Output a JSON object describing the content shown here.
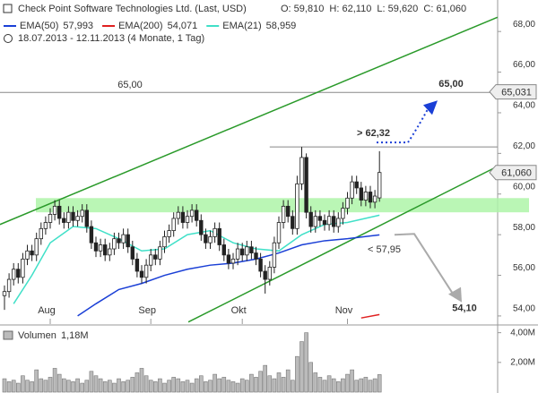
{
  "chart_data": {
    "type": "candlestick",
    "title": "Check Point Software Technologies Ltd. (Last, USD)",
    "quote": "O: 59,810  H: 62,110  L: 59,620  C: 61,060",
    "period": "18.07.2013 - 12.11.2013 (4 Monate, 1 Tag)",
    "ylim": [
      53.6,
      69.55
    ],
    "yticks": [
      {
        "value": 54,
        "label": "54,00"
      },
      {
        "value": 56,
        "label": "56,00"
      },
      {
        "value": 58,
        "label": "58,00"
      },
      {
        "value": 60,
        "label": "60,00"
      },
      {
        "value": 62,
        "label": "62,00"
      },
      {
        "value": 64,
        "label": "64,00"
      },
      {
        "value": 66,
        "label": "66,00"
      },
      {
        "value": 68,
        "label": "68,00"
      }
    ],
    "xticks": [
      {
        "value": 10,
        "label": "Aug"
      },
      {
        "value": 32,
        "label": "Sep"
      },
      {
        "value": 52,
        "label": "Okt"
      },
      {
        "value": 75,
        "label": "Nov"
      }
    ],
    "open": [
      55.0,
      55.2,
      55.8,
      56.3,
      55.9,
      56.8,
      57.2,
      57.0,
      57.8,
      58.3,
      58.6,
      59.0,
      59.4,
      58.8,
      58.6,
      59.1,
      58.7,
      58.9,
      59.2,
      58.4,
      57.6,
      57.2,
      57.5,
      57.0,
      57.3,
      57.8,
      57.6,
      58.0,
      57.4,
      56.8,
      56.2,
      55.9,
      56.5,
      57.0,
      56.8,
      57.4,
      57.9,
      58.2,
      58.8,
      59.1,
      58.6,
      58.9,
      59.2,
      58.7,
      58.0,
      57.6,
      57.9,
      58.3,
      57.5,
      57.0,
      56.6,
      56.8,
      57.3,
      57.0,
      57.4,
      57.1,
      56.8,
      56.2,
      55.8,
      56.4,
      57.6,
      58.6,
      59.4,
      58.9,
      58.3,
      60.5,
      61.8,
      59.1,
      58.4,
      58.9,
      58.7,
      58.5,
      58.9,
      58.4,
      58.8,
      59.3,
      59.8,
      60.6,
      60.3,
      59.7,
      60.1,
      59.6,
      59.81
    ],
    "high": [
      55.5,
      56.1,
      56.6,
      56.6,
      57.1,
      57.5,
      57.5,
      58.1,
      58.6,
      58.9,
      59.3,
      59.7,
      59.7,
      59.1,
      59.4,
      59.4,
      59.2,
      59.5,
      59.5,
      58.7,
      57.9,
      57.8,
      57.8,
      57.6,
      58.1,
      58.1,
      58.3,
      58.3,
      57.7,
      57.1,
      56.5,
      56.8,
      57.3,
      57.3,
      57.7,
      58.2,
      58.5,
      59.1,
      59.4,
      59.4,
      59.2,
      59.5,
      59.5,
      59.0,
      58.3,
      58.2,
      58.6,
      58.6,
      57.8,
      57.3,
      57.1,
      57.6,
      57.6,
      57.7,
      57.7,
      57.4,
      57.1,
      56.5,
      56.7,
      57.9,
      58.9,
      59.7,
      59.7,
      59.2,
      60.9,
      62.32,
      62.0,
      59.4,
      59.2,
      59.2,
      59.0,
      59.2,
      59.2,
      59.1,
      59.6,
      60.1,
      60.9,
      60.9,
      60.6,
      60.4,
      60.4,
      60.2,
      62.11
    ],
    "low": [
      54.3,
      54.9,
      55.5,
      55.6,
      55.6,
      56.5,
      56.7,
      56.7,
      57.5,
      58.0,
      58.3,
      58.7,
      58.5,
      58.3,
      58.3,
      58.4,
      58.4,
      58.6,
      58.1,
      57.3,
      56.9,
      56.9,
      56.7,
      56.7,
      57.0,
      57.3,
      57.3,
      57.1,
      56.5,
      55.9,
      55.6,
      55.6,
      56.2,
      56.5,
      56.5,
      57.1,
      57.6,
      57.9,
      58.5,
      58.3,
      58.3,
      58.6,
      58.4,
      57.7,
      57.3,
      57.3,
      57.6,
      57.2,
      56.7,
      56.3,
      56.3,
      56.5,
      56.7,
      56.7,
      56.8,
      56.5,
      55.9,
      55.1,
      55.5,
      56.1,
      57.3,
      58.3,
      58.6,
      58.0,
      58.0,
      60.2,
      58.8,
      58.1,
      58.1,
      58.4,
      58.2,
      58.2,
      58.1,
      58.1,
      58.5,
      59.0,
      59.5,
      60.0,
      59.4,
      59.4,
      59.3,
      59.3,
      59.62
    ],
    "close": [
      55.2,
      55.8,
      56.3,
      55.9,
      56.8,
      57.2,
      57.0,
      57.8,
      58.3,
      58.6,
      59.0,
      59.4,
      58.8,
      58.6,
      59.1,
      58.7,
      58.9,
      59.2,
      58.4,
      57.6,
      57.2,
      57.5,
      57.0,
      57.3,
      57.8,
      57.6,
      58.0,
      57.4,
      56.8,
      56.2,
      55.9,
      56.5,
      57.0,
      56.8,
      57.4,
      57.9,
      58.2,
      58.8,
      59.1,
      58.6,
      58.9,
      59.2,
      58.7,
      58.0,
      57.6,
      57.9,
      58.3,
      57.5,
      57.0,
      56.6,
      56.8,
      57.3,
      57.0,
      57.4,
      57.1,
      56.8,
      56.2,
      55.8,
      56.4,
      57.6,
      58.6,
      59.4,
      58.9,
      58.3,
      60.5,
      61.8,
      59.1,
      58.4,
      58.9,
      58.7,
      58.5,
      58.9,
      58.4,
      58.8,
      59.3,
      59.8,
      60.6,
      60.3,
      59.7,
      60.1,
      59.6,
      59.9,
      61.06
    ],
    "series": [
      {
        "name": "EMA(50)",
        "value_label": "57,993",
        "color": "#1a3fd6",
        "x": [
          16,
          20,
          25,
          30,
          35,
          40,
          45,
          50,
          55,
          60,
          65,
          70,
          75,
          82
        ],
        "values": [
          54.0,
          54.6,
          55.3,
          55.6,
          56.0,
          56.3,
          56.5,
          56.6,
          56.8,
          57.1,
          57.5,
          57.7,
          57.8,
          57.99
        ]
      },
      {
        "name": "EMA(200)",
        "value_label": "54,071",
        "color": "#e02020",
        "x": [
          78,
          82
        ],
        "values": [
          53.9,
          54.07
        ]
      },
      {
        "name": "EMA(21)",
        "value_label": "58,959",
        "color": "#40e0c8",
        "x": [
          2,
          6,
          10,
          15,
          20,
          25,
          30,
          35,
          40,
          45,
          50,
          55,
          60,
          65,
          70,
          75,
          82
        ],
        "values": [
          54.6,
          56.0,
          57.6,
          58.4,
          58.3,
          57.8,
          57.2,
          57.3,
          58.0,
          58.2,
          57.6,
          57.3,
          57.2,
          58.0,
          58.5,
          58.6,
          58.96
        ]
      }
    ],
    "zone": [
      59.1,
      59.8
    ],
    "trendlines": [
      {
        "x": [
          -1,
          107.8
        ],
        "values": [
          58.5,
          68.7
        ]
      },
      {
        "x": [
          40.2,
          107.8
        ],
        "values": [
          53.7,
          61.36
        ]
      }
    ],
    "hlines": [
      {
        "value": 65.0,
        "label": "65,00"
      }
    ],
    "resistance": {
      "value": 62.32,
      "label": "> 62,32",
      "x": [
        58,
        107.8
      ]
    },
    "target_up": {
      "value": 65.0,
      "label": "65,00"
    },
    "support": {
      "value": 57.95,
      "label": "< 57,95"
    },
    "target_down": {
      "value": 54.1,
      "label": "54,10"
    },
    "price_tags": [
      {
        "value": 65.031,
        "label": "65,031"
      },
      {
        "value": 61.06,
        "label": "61,060"
      }
    ],
    "volume": {
      "title": "Volumen",
      "last_label": "1,18M",
      "ylim": [
        0,
        4.4
      ],
      "yticks": [
        {
          "value": 2,
          "label": "2,00M"
        },
        {
          "value": 4,
          "label": "4,00M"
        }
      ],
      "values": [
        0.9,
        0.7,
        0.8,
        0.6,
        1.1,
        0.8,
        0.7,
        1.5,
        0.9,
        0.8,
        1.0,
        1.6,
        1.2,
        0.9,
        0.8,
        0.7,
        0.9,
        0.6,
        0.8,
        1.4,
        1.1,
        0.9,
        0.7,
        0.8,
        0.6,
        0.9,
        0.7,
        0.8,
        1.0,
        1.3,
        1.6,
        1.1,
        0.8,
        0.7,
        0.9,
        0.6,
        0.8,
        1.0,
        0.9,
        0.7,
        0.8,
        0.6,
        0.9,
        1.1,
        0.7,
        0.8,
        1.2,
        0.9,
        1.0,
        0.8,
        0.7,
        0.6,
        0.9,
        0.8,
        1.2,
        1.0,
        1.4,
        1.8,
        1.1,
        0.9,
        1.3,
        1.0,
        1.5,
        0.8,
        2.4,
        3.4,
        4.0,
        2.0,
        1.3,
        1.0,
        0.8,
        1.1,
        0.9,
        0.7,
        0.9,
        1.2,
        1.5,
        0.8,
        0.9,
        1.0,
        0.8,
        0.9,
        1.18
      ]
    }
  }
}
